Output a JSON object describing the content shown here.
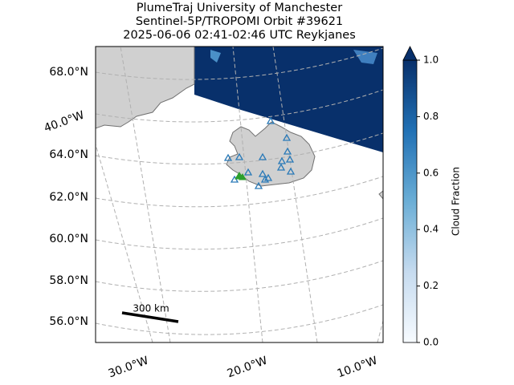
{
  "header": {
    "title_lines": [
      "PlumeTraj    University of Manchester",
      "Sentinel-5P/TROPOMI Orbit #39621",
      "2025-06-06   02:41-02:46 UTC   Reykjanes"
    ]
  },
  "map": {
    "lat_labels": [
      "68.0°N",
      "64.0°N",
      "62.0°N",
      "60.0°N",
      "58.0°N",
      "56.0°N"
    ],
    "lon_labels": [
      "40.0°W",
      "30.0°W",
      "20.0°W",
      "10.0°W"
    ],
    "scale_bar": "300 km"
  },
  "colorbar": {
    "label": "Cloud Fraction",
    "clim": [
      0,
      1
    ],
    "ticks": [
      {
        "value": 0,
        "label": "0.0"
      },
      0.2,
      0.4,
      0.6,
      0.8,
      {
        "value": 1,
        "label": "1.0"
      }
    ]
  }
}
